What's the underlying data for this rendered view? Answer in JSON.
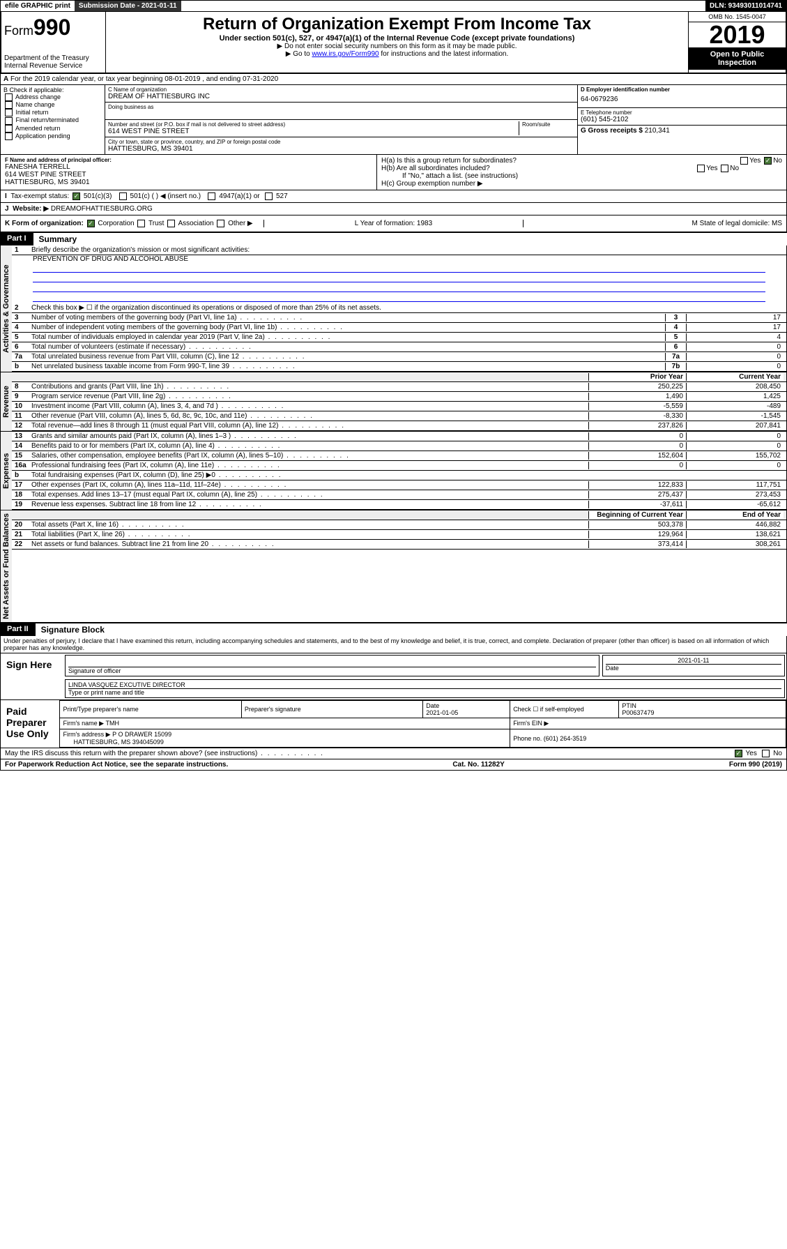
{
  "topbar": {
    "efile": "efile GRAPHIC print",
    "submission": "Submission Date - 2021-01-11",
    "dln": "DLN: 93493011014741"
  },
  "header": {
    "form_label": "Form",
    "form_number": "990",
    "dept": "Department of the Treasury",
    "irs": "Internal Revenue Service",
    "title": "Return of Organization Exempt From Income Tax",
    "subtitle": "Under section 501(c), 527, or 4947(a)(1) of the Internal Revenue Code (except private foundations)",
    "note1": "▶ Do not enter social security numbers on this form as it may be made public.",
    "note2_pre": "▶ Go to ",
    "note2_link": "www.irs.gov/Form990",
    "note2_post": " for instructions and the latest information.",
    "omb": "OMB No. 1545-0047",
    "year": "2019",
    "open": "Open to Public Inspection"
  },
  "section_a": "For the 2019 calendar year, or tax year beginning 08-01-2019    , and ending 07-31-2020",
  "box_b": {
    "title": "B Check if applicable:",
    "opts": [
      "Address change",
      "Name change",
      "Initial return",
      "Final return/terminated",
      "Amended return",
      "Application pending"
    ]
  },
  "box_c": {
    "name_lbl": "C Name of organization",
    "name": "DREAM OF HATTIESBURG INC",
    "dba_lbl": "Doing business as",
    "addr_lbl": "Number and street (or P.O. box if mail is not delivered to street address)",
    "room_lbl": "Room/suite",
    "addr": "614 WEST PINE STREET",
    "city_lbl": "City or town, state or province, country, and ZIP or foreign postal code",
    "city": "HATTIESBURG, MS  39401"
  },
  "box_d": {
    "lbl": "D Employer identification number",
    "val": "64-0679236"
  },
  "box_e": {
    "lbl": "E Telephone number",
    "val": "(601) 545-2102"
  },
  "box_g": {
    "lbl": "G Gross receipts $",
    "val": "210,341"
  },
  "box_f": {
    "lbl": "F Name and address of principal officer:",
    "name": "FANESHA TERRELL",
    "addr1": "614 WEST PINE STREET",
    "addr2": "HATTIESBURG, MS  39401"
  },
  "box_h": {
    "a": "H(a)  Is this a group return for subordinates?",
    "b": "H(b)  Are all subordinates included?",
    "b_note": "If \"No,\" attach a list. (see instructions)",
    "c": "H(c)  Group exemption number ▶",
    "yes": "Yes",
    "no": "No"
  },
  "row_i": {
    "lbl": "Tax-exempt status:",
    "o1": "501(c)(3)",
    "o2": "501(c) (   ) ◀ (insert no.)",
    "o3": "4947(a)(1) or",
    "o4": "527"
  },
  "row_j": {
    "lbl": "Website: ▶",
    "val": "DREAMOFHATTIESBURG.ORG"
  },
  "row_k": {
    "lbl": "K Form of organization:",
    "o1": "Corporation",
    "o2": "Trust",
    "o3": "Association",
    "o4": "Other ▶",
    "l": "L Year of formation: 1983",
    "m": "M State of legal domicile: MS"
  },
  "part1": {
    "hdr": "Part I",
    "title": "Summary",
    "q1": "Briefly describe the organization's mission or most significant activities:",
    "mission": "PREVENTION OF DRUG AND ALCOHOL ABUSE",
    "q2": "Check this box ▶ ☐  if the organization discontinued its operations or disposed of more than 25% of its net assets.",
    "vtab_gov": "Activities & Governance",
    "vtab_rev": "Revenue",
    "vtab_exp": "Expenses",
    "vtab_net": "Net Assets or Fund Balances",
    "lines_gov": [
      {
        "n": "3",
        "t": "Number of voting members of the governing body (Part VI, line 1a)",
        "b": "3",
        "v": "17"
      },
      {
        "n": "4",
        "t": "Number of independent voting members of the governing body (Part VI, line 1b)",
        "b": "4",
        "v": "17"
      },
      {
        "n": "5",
        "t": "Total number of individuals employed in calendar year 2019 (Part V, line 2a)",
        "b": "5",
        "v": "4"
      },
      {
        "n": "6",
        "t": "Total number of volunteers (estimate if necessary)",
        "b": "6",
        "v": "0"
      },
      {
        "n": "7a",
        "t": "Total unrelated business revenue from Part VIII, column (C), line 12",
        "b": "7a",
        "v": "0"
      },
      {
        "n": "b",
        "t": "Net unrelated business taxable income from Form 990-T, line 39",
        "b": "7b",
        "v": "0"
      }
    ],
    "col_prior": "Prior Year",
    "col_current": "Current Year",
    "lines_rev": [
      {
        "n": "8",
        "t": "Contributions and grants (Part VIII, line 1h)",
        "p": "250,225",
        "c": "208,450"
      },
      {
        "n": "9",
        "t": "Program service revenue (Part VIII, line 2g)",
        "p": "1,490",
        "c": "1,425"
      },
      {
        "n": "10",
        "t": "Investment income (Part VIII, column (A), lines 3, 4, and 7d )",
        "p": "-5,559",
        "c": "-489"
      },
      {
        "n": "11",
        "t": "Other revenue (Part VIII, column (A), lines 5, 6d, 8c, 9c, 10c, and 11e)",
        "p": "-8,330",
        "c": "-1,545"
      },
      {
        "n": "12",
        "t": "Total revenue—add lines 8 through 11 (must equal Part VIII, column (A), line 12)",
        "p": "237,826",
        "c": "207,841"
      }
    ],
    "lines_exp": [
      {
        "n": "13",
        "t": "Grants and similar amounts paid (Part IX, column (A), lines 1–3 )",
        "p": "0",
        "c": "0"
      },
      {
        "n": "14",
        "t": "Benefits paid to or for members (Part IX, column (A), line 4)",
        "p": "0",
        "c": "0"
      },
      {
        "n": "15",
        "t": "Salaries, other compensation, employee benefits (Part IX, column (A), lines 5–10)",
        "p": "152,604",
        "c": "155,702"
      },
      {
        "n": "16a",
        "t": "Professional fundraising fees (Part IX, column (A), line 11e)",
        "p": "0",
        "c": "0"
      },
      {
        "n": "b",
        "t": "Total fundraising expenses (Part IX, column (D), line 25) ▶0",
        "p": "",
        "c": ""
      },
      {
        "n": "17",
        "t": "Other expenses (Part IX, column (A), lines 11a–11d, 11f–24e)",
        "p": "122,833",
        "c": "117,751"
      },
      {
        "n": "18",
        "t": "Total expenses. Add lines 13–17 (must equal Part IX, column (A), line 25)",
        "p": "275,437",
        "c": "273,453"
      },
      {
        "n": "19",
        "t": "Revenue less expenses. Subtract line 18 from line 12",
        "p": "-37,611",
        "c": "-65,612"
      }
    ],
    "col_begin": "Beginning of Current Year",
    "col_end": "End of Year",
    "lines_net": [
      {
        "n": "20",
        "t": "Total assets (Part X, line 16)",
        "p": "503,378",
        "c": "446,882"
      },
      {
        "n": "21",
        "t": "Total liabilities (Part X, line 26)",
        "p": "129,964",
        "c": "138,621"
      },
      {
        "n": "22",
        "t": "Net assets or fund balances. Subtract line 21 from line 20",
        "p": "373,414",
        "c": "308,261"
      }
    ]
  },
  "part2": {
    "hdr": "Part II",
    "title": "Signature Block",
    "perjury": "Under penalties of perjury, I declare that I have examined this return, including accompanying schedules and statements, and to the best of my knowledge and belief, it is true, correct, and complete. Declaration of preparer (other than officer) is based on all information of which preparer has any knowledge.",
    "sign_here": "Sign Here",
    "sig_officer": "Signature of officer",
    "sig_date": "2021-01-11",
    "date_lbl": "Date",
    "officer_name": "LINDA VASQUEZ  EXCUTIVE DIRECTOR",
    "type_name": "Type or print name and title",
    "paid": "Paid Preparer Use Only",
    "prep_name_lbl": "Print/Type preparer's name",
    "prep_sig_lbl": "Preparer's signature",
    "prep_date_lbl": "Date",
    "prep_date": "2021-01-05",
    "check_self": "Check ☐ if self-employed",
    "ptin_lbl": "PTIN",
    "ptin": "P00637479",
    "firm_name_lbl": "Firm's name   ▶",
    "firm_name": "TMH",
    "firm_ein_lbl": "Firm's EIN ▶",
    "firm_addr_lbl": "Firm's address ▶",
    "firm_addr": "P O DRAWER 15099",
    "firm_city": "HATTIESBURG, MS  394045099",
    "firm_phone_lbl": "Phone no.",
    "firm_phone": "(601) 264-3519",
    "discuss": "May the IRS discuss this return with the preparer shown above? (see instructions)",
    "yes": "Yes",
    "no": "No"
  },
  "footer": {
    "left": "For Paperwork Reduction Act Notice, see the separate instructions.",
    "mid": "Cat. No. 11282Y",
    "right": "Form 990 (2019)"
  }
}
